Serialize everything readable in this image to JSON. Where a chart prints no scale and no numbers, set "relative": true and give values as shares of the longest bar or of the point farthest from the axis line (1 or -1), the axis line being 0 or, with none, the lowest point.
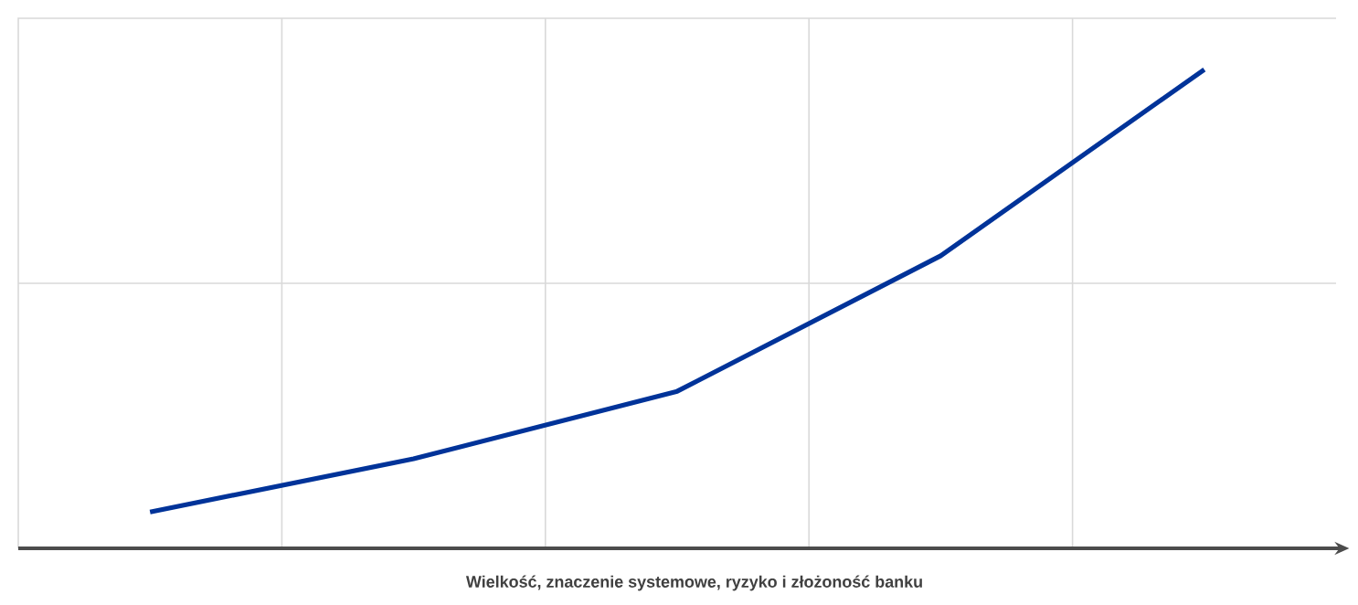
{
  "chart_data": {
    "type": "line",
    "xlabel": "Wielkość, znaczenie systemowe, ryzyko i złożoność banku",
    "categories": [
      null,
      null,
      null,
      null,
      null
    ],
    "relative": true,
    "grid": true,
    "legend": false,
    "marker": "none",
    "line_style": "solid",
    "series": [
      {
        "color": "#003399",
        "values": [
          0.076,
          0.187,
          0.328,
          0.611,
          1
        ]
      }
    ]
  }
}
